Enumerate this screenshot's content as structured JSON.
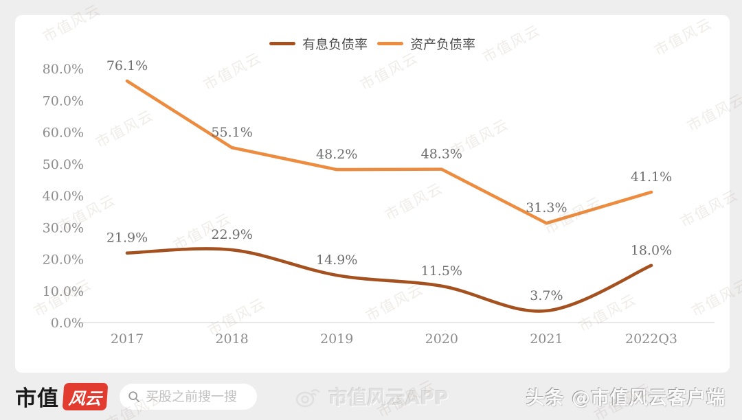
{
  "watermark": "市值风云",
  "chart_data": {
    "type": "line",
    "categories": [
      "2017",
      "2018",
      "2019",
      "2020",
      "2021",
      "2022Q3"
    ],
    "series": [
      {
        "name": "有息负债率",
        "color": "#A4501F",
        "smooth": true,
        "values": [
          21.9,
          22.9,
          14.9,
          11.5,
          3.7,
          18.0
        ]
      },
      {
        "name": "资产负债率",
        "color": "#ED8C3F",
        "smooth": false,
        "values": [
          76.1,
          55.1,
          48.2,
          48.3,
          31.3,
          41.1
        ]
      }
    ],
    "title": "",
    "xlabel": "",
    "ylabel": "",
    "ylim": [
      0,
      80
    ],
    "yticks": [
      "80.0%",
      "70.0%",
      "60.0%",
      "50.0%",
      "40.0%",
      "30.0%",
      "20.0%",
      "10.0%",
      "0.0%"
    ],
    "grid": false,
    "legend_position": "top",
    "label_format": "value.toFixed(1) + '%'"
  },
  "footer": {
    "brand_text": "市值",
    "brand_badge": "风云",
    "search_placeholder": "买股之前搜一搜",
    "center_label": "市值风云APP",
    "right_label": "头条 @市值风云客户端"
  },
  "colors": {
    "background": "#EEEEEF",
    "card": "#FFFFFF",
    "axis_line": "#D9D9D9",
    "tick_text": "#8C8C8C",
    "data_label_text": "#6E6E6E",
    "brand_red": "#E23B30",
    "series_brown": "#A4501F",
    "series_orange": "#ED8C3F"
  }
}
